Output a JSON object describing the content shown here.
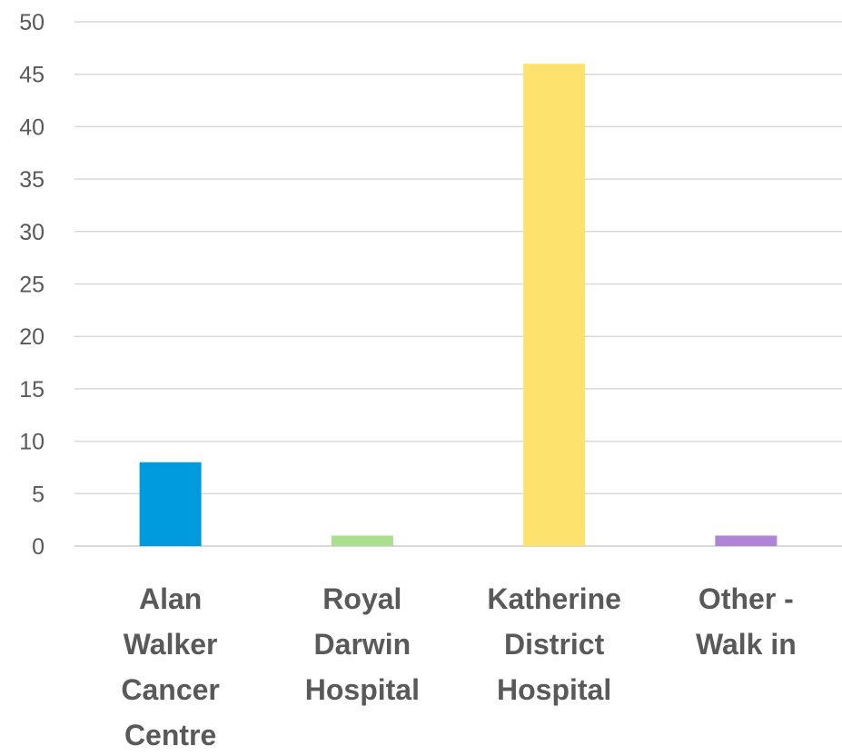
{
  "chart_data": {
    "type": "bar",
    "title": "",
    "xlabel": "",
    "ylabel": "",
    "categories": [
      [
        "Alan",
        "Walker",
        "Cancer",
        "Centre"
      ],
      [
        "Royal",
        "Darwin",
        "Hospital"
      ],
      [
        "Katherine",
        "District",
        "Hospital"
      ],
      [
        "Other -",
        "Walk in"
      ]
    ],
    "values": [
      8,
      1,
      46,
      1
    ],
    "colors": [
      "#009ade",
      "#a9df8f",
      "#fde36d",
      "#b084d6"
    ],
    "ylim": [
      0,
      50
    ],
    "yticks": [
      "0",
      "5",
      "10",
      "15",
      "20",
      "25",
      "30",
      "35",
      "40",
      "45",
      "50"
    ],
    "grid": true,
    "legend": "none"
  }
}
